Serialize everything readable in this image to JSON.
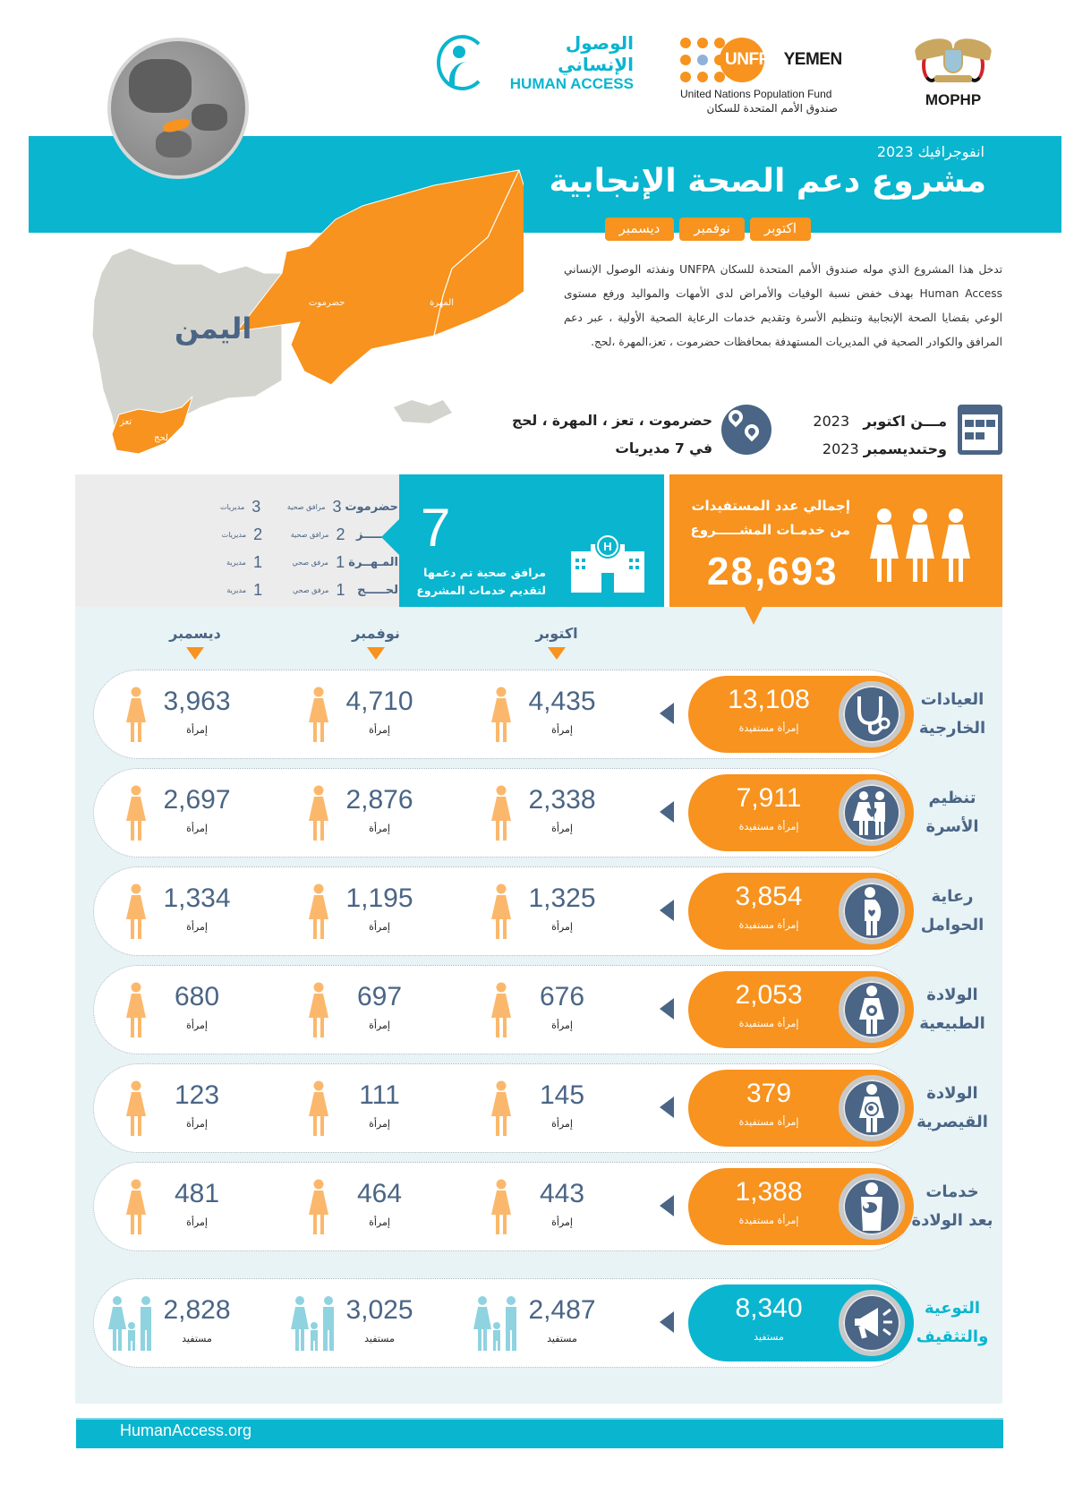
{
  "header": {
    "human_access": {
      "arabic": "الوصول الإنساني",
      "english": "HUMAN ACCESS"
    },
    "unfpa": {
      "brand": "UNFPA",
      "country": "YEMEN",
      "subtitle_en": "United Nations Population Fund",
      "subtitle_ar": "صندوق الأمم المتحدة للسكان"
    },
    "ministry": {
      "label": "MOPHP"
    }
  },
  "title_band": {
    "eyebrow": "انفوجرافيك 2023",
    "title": "مشروع دعم الصحة الإنجابية",
    "months": [
      "اكتوبر",
      "نوفمبر",
      "ديسمبر"
    ]
  },
  "map": {
    "country_label": "اليمن",
    "regions": [
      {
        "name": "حضرموت",
        "highlighted": true
      },
      {
        "name": "المهرة",
        "highlighted": true
      },
      {
        "name": "تعز",
        "highlighted": true
      },
      {
        "name": "لحج",
        "highlighted": true
      }
    ],
    "colors": {
      "highlight": "#f7931e",
      "base": "#d4d4cf"
    }
  },
  "intro": "تدخل هذا المشروع  الذي موله صندوق الأمم المتحدة للسكان UNFPA ونفذته الوصول الإنساني Human Access بهدف خفض نسبة الوفيات والأمراض لدى الأمهات والمواليد ورفع مستوى الوعي بقضايا الصحة الإنجابية  وتنظيم الأسرة وتقديم خدمات الرعاية الصحية الأولية  ، عبر دعم المرافق والكوادر الصحية  في المديريات المستهدفة بمحافظات حضرموت ، تعز،المهرة ،لحج.",
  "period": {
    "from_label": "مـــن اكتوبر",
    "from_year": "2023",
    "to_label": "وحتىديسمبر",
    "to_year": "2023"
  },
  "location": {
    "line1": "حضرموت ، تعز ، المهرة ، لحج",
    "line2": "في 7 مديريات"
  },
  "governorates": [
    {
      "name": "حضرموت",
      "facilities": "3",
      "facilities_unit": "مرافق صحية",
      "districts": "3",
      "districts_unit": "مديريات"
    },
    {
      "name": "تـعـــــز",
      "facilities": "2",
      "facilities_unit": "مرافق صحية",
      "districts": "2",
      "districts_unit": "مديريات"
    },
    {
      "name": "المـهــرة",
      "facilities": "1",
      "facilities_unit": "مرفق صحي",
      "districts": "1",
      "districts_unit": "مديرية"
    },
    {
      "name": "لحـــــج",
      "facilities": "1",
      "facilities_unit": "مرفق صحي",
      "districts": "1",
      "districts_unit": "مديرية"
    }
  ],
  "facilities_stat": {
    "value": "7",
    "caption_line1": "مرافق صحية تم دعمها",
    "caption_line2": "لتقديم خدمات المشروع"
  },
  "beneficiaries_stat": {
    "caption_line1": "إجمالي عدد المستفيدات",
    "caption_line2": "من خدمـات المشـــــروع",
    "value": "28,693"
  },
  "month_headers": [
    "اكتوبر",
    "نوفمبر",
    "ديسمبر"
  ],
  "services": [
    {
      "label_line1": "العيادات",
      "label_line2": "الخارجية",
      "icon": "stethoscope-icon",
      "total": "13,108",
      "total_caption": "إمرأة مستفيدة",
      "october": "4,435",
      "november": "4,710",
      "december": "3,963",
      "unit": "إمرأة"
    },
    {
      "label_line1": "تنظيم",
      "label_line2": "الأسرة",
      "icon": "family-heart-icon",
      "total": "7,911",
      "total_caption": "إمرأة مستفيدة",
      "october": "2,338",
      "november": "2,876",
      "december": "2,697",
      "unit": "إمرأة"
    },
    {
      "label_line1": "رعاية",
      "label_line2": "الحوامل",
      "icon": "pregnant-woman-icon",
      "total": "3,854",
      "total_caption": "إمرأة مستفيدة",
      "october": "1,325",
      "november": "1,195",
      "december": "1,334",
      "unit": "إمرأة"
    },
    {
      "label_line1": "الولادة",
      "label_line2": "الطبيعية",
      "icon": "natural-birth-icon",
      "total": "2,053",
      "total_caption": "إمرأة مستفيدة",
      "october": "676",
      "november": "697",
      "december": "680",
      "unit": "إمرأة"
    },
    {
      "label_line1": "الولادة",
      "label_line2": "القيصرية",
      "icon": "cesarean-birth-icon",
      "total": "379",
      "total_caption": "إمرأة مستفيدة",
      "october": "145",
      "november": "111",
      "december": "123",
      "unit": "إمرأة"
    },
    {
      "label_line1": "خدمات",
      "label_line2": "بعد الولادة",
      "icon": "mother-baby-icon",
      "total": "1,388",
      "total_caption": "إمرأة مستفيدة",
      "october": "443",
      "november": "464",
      "december": "481",
      "unit": "إمرأة"
    },
    {
      "label_line1": "التوعية",
      "label_line2": "والتثقيف",
      "icon": "megaphone-icon",
      "total": "8,340",
      "total_caption": "مستفيد",
      "october": "2,487",
      "november": "3,025",
      "december": "2,828",
      "unit": "مستفيد"
    }
  ],
  "colors": {
    "teal": "#0ab5cf",
    "orange": "#f7931e",
    "navy": "#4a6585",
    "figure": "#fbb86c",
    "family_figure": "#8fd3e0",
    "panel": "#e8f3f6"
  },
  "footer": {
    "url": "HumanAccess.org"
  }
}
